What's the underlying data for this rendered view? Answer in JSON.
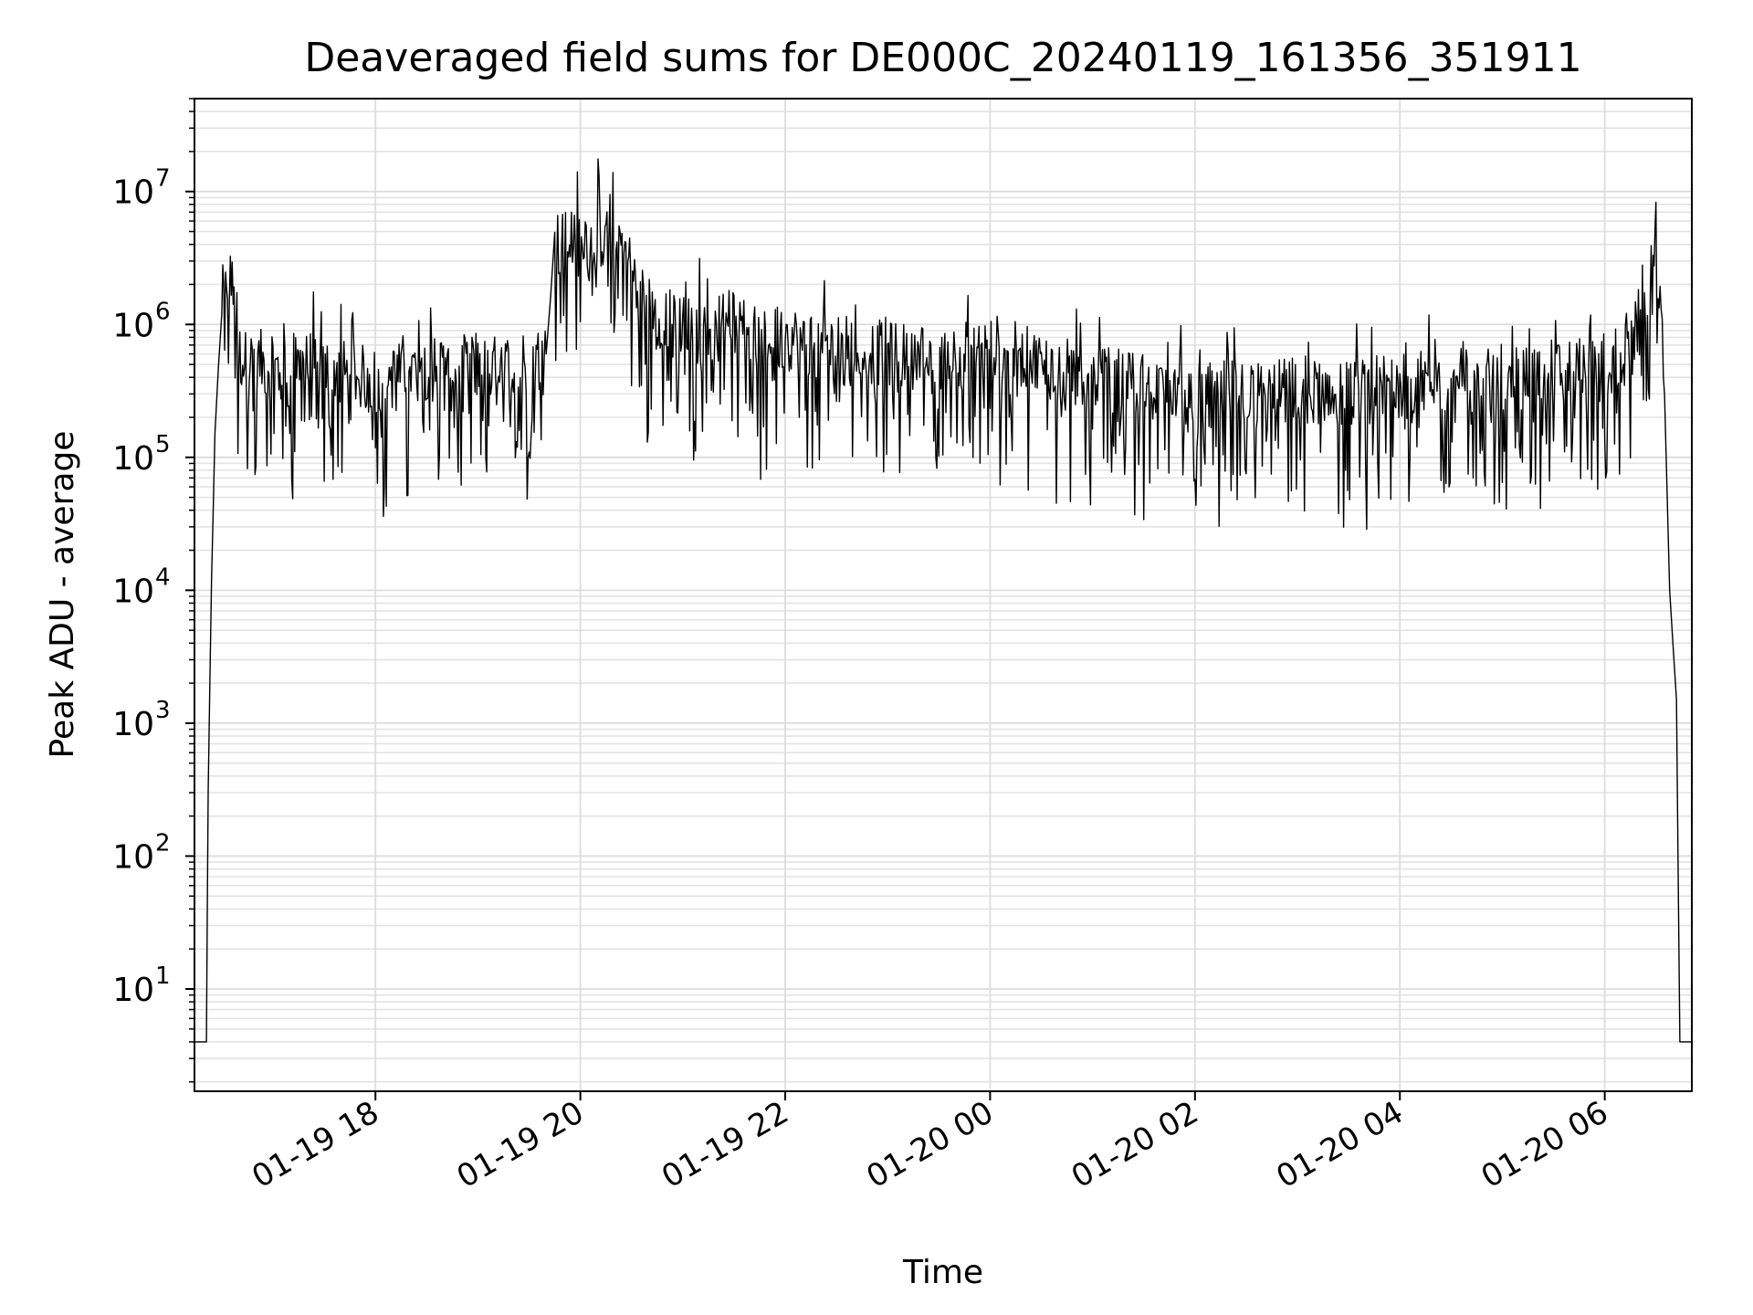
{
  "chart_data": {
    "type": "line",
    "title": "Deaveraged field sums for DE000C_20240119_161356_351911",
    "xlabel": "Time",
    "ylabel": "Peak ADU - average",
    "yscale": "log",
    "grid": true,
    "xlim": [
      "2024-01-19 16:14",
      "2024-01-20 06:51"
    ],
    "ylim": [
      1.7,
      50000000
    ],
    "x_ticks": [
      {
        "value": "2024-01-19 18:00",
        "label": "01-19 18"
      },
      {
        "value": "2024-01-19 20:00",
        "label": "01-19 20"
      },
      {
        "value": "2024-01-19 22:00",
        "label": "01-19 22"
      },
      {
        "value": "2024-01-20 00:00",
        "label": "01-20 00"
      },
      {
        "value": "2024-01-20 02:00",
        "label": "01-20 02"
      },
      {
        "value": "2024-01-20 04:00",
        "label": "01-20 04"
      },
      {
        "value": "2024-01-20 06:00",
        "label": "01-20 06"
      }
    ],
    "y_ticks": [
      {
        "value": 10,
        "base": "10",
        "exp": "1"
      },
      {
        "value": 100,
        "base": "10",
        "exp": "2"
      },
      {
        "value": 1000,
        "base": "10",
        "exp": "3"
      },
      {
        "value": 10000,
        "base": "10",
        "exp": "4"
      },
      {
        "value": 100000,
        "base": "10",
        "exp": "5"
      },
      {
        "value": 1000000,
        "base": "10",
        "exp": "6"
      },
      {
        "value": 10000000,
        "base": "10",
        "exp": "7"
      }
    ],
    "series": [
      {
        "color": "#000000",
        "x": [
          "2024-01-19 16:14",
          "2024-01-19 16:21",
          "2024-01-19 16:22",
          "2024-01-19 16:24",
          "2024-01-19 16:26",
          "2024-01-19 16:30",
          "2024-01-19 16:35",
          "2024-01-19 16:40",
          "2024-01-19 16:45",
          "2024-01-19 16:50",
          "2024-01-19 17:00",
          "2024-01-19 17:15",
          "2024-01-19 17:30",
          "2024-01-19 17:45",
          "2024-01-19 18:00",
          "2024-01-19 18:15",
          "2024-01-19 18:30",
          "2024-01-19 18:45",
          "2024-01-19 19:00",
          "2024-01-19 19:15",
          "2024-01-19 19:30",
          "2024-01-19 19:40",
          "2024-01-19 19:45",
          "2024-01-19 20:00",
          "2024-01-19 20:15",
          "2024-01-19 20:25",
          "2024-01-19 20:30",
          "2024-01-19 20:45",
          "2024-01-19 21:00",
          "2024-01-19 21:15",
          "2024-01-19 21:30",
          "2024-01-19 21:45",
          "2024-01-19 22:00",
          "2024-01-19 22:30",
          "2024-01-19 23:00",
          "2024-01-19 23:30",
          "2024-01-20 00:00",
          "2024-01-20 00:30",
          "2024-01-20 01:00",
          "2024-01-20 01:30",
          "2024-01-20 02:00",
          "2024-01-20 02:30",
          "2024-01-20 03:00",
          "2024-01-20 03:30",
          "2024-01-20 04:00",
          "2024-01-20 04:30",
          "2024-01-20 05:00",
          "2024-01-20 05:30",
          "2024-01-20 06:00",
          "2024-01-20 06:15",
          "2024-01-20 06:25",
          "2024-01-20 06:30",
          "2024-01-20 06:33",
          "2024-01-20 06:35",
          "2024-01-20 06:38",
          "2024-01-20 06:42",
          "2024-01-20 06:44",
          "2024-01-20 06:51"
        ],
        "y": [
          4,
          4,
          300,
          12000,
          150000,
          1500000,
          2500000,
          600000,
          500000,
          550000,
          450000,
          500000,
          480000,
          420000,
          380000,
          420000,
          480000,
          500000,
          450000,
          480000,
          500000,
          600000,
          4000000,
          5000000,
          4500000,
          4000000,
          2500000,
          1200000,
          1000000,
          800000,
          1200000,
          700000,
          800000,
          700000,
          600000,
          550000,
          700000,
          500000,
          400000,
          350000,
          300000,
          300000,
          320000,
          300000,
          350000,
          380000,
          400000,
          450000,
          500000,
          600000,
          2000000,
          2500000,
          1500000,
          300000,
          10000,
          1500,
          4,
          4
        ]
      }
    ]
  }
}
